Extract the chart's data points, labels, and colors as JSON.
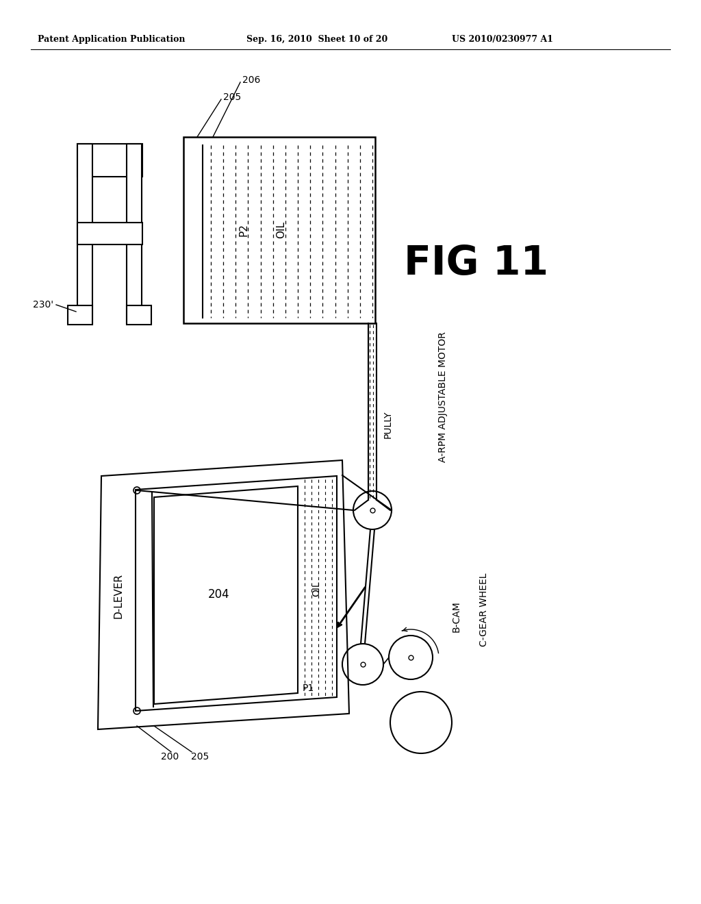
{
  "bg_color": "#ffffff",
  "header_text1": "Patent Application Publication",
  "header_text2": "Sep. 16, 2010  Sheet 10 of 20",
  "header_text3": "US 2010/0230977 A1",
  "fig_label": "FIG 11",
  "label_230": "230'",
  "label_205_top": "205",
  "label_206": "206",
  "label_P2": "P2",
  "label_OIL_top": "OIL",
  "label_204": "204",
  "label_OIL_bot": "OIL",
  "label_P1": "P1",
  "label_200": "200",
  "label_205_bot": "205",
  "label_DLEVER": "D-LEVER",
  "label_PULLY": "PULLY",
  "label_A": "A-RPM ADJUSTABLE MOTOR",
  "label_B": "B-CAM",
  "label_C": "C-GEAR WHEEL"
}
